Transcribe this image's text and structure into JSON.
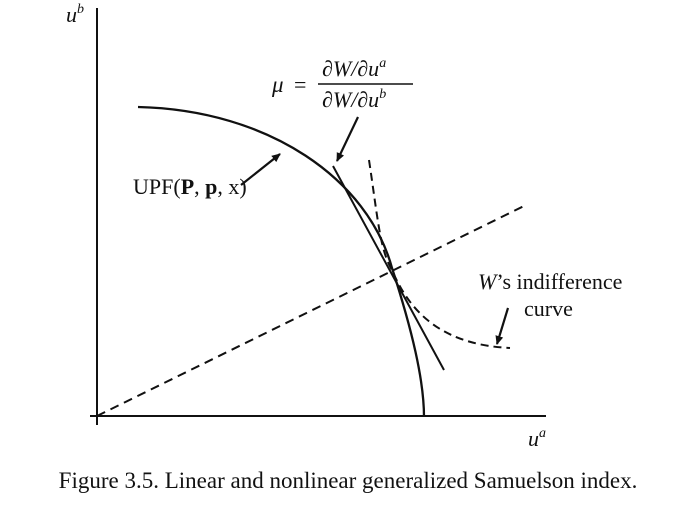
{
  "axes": {
    "y_label": {
      "base": "u",
      "sup": "b"
    },
    "x_label": {
      "base": "u",
      "sup": "a"
    }
  },
  "mu_equation": {
    "symbol": "μ",
    "equals": "=",
    "numerator": {
      "pre": "∂W/∂u",
      "sup": "a"
    },
    "denominator": {
      "pre": "∂W/∂u",
      "sup": "b"
    }
  },
  "upf_label": {
    "prefix": "UPF(",
    "bold1": "P",
    "sep1": ", ",
    "bold2": "p",
    "rest": ", x)"
  },
  "indifference_label": {
    "w": "W",
    "line1_rest": "’s indifference",
    "line2": "curve"
  },
  "caption": "Figure 3.5. Linear and nonlinear generalized Samuelson index."
}
